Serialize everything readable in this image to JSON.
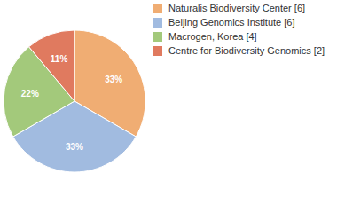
{
  "chart_data": {
    "type": "pie",
    "categories": [
      "Naturalis Biodiversity Center [6]",
      "Beijing Genomics Institute [6]",
      "Macrogen, Korea [4]",
      "Centre for Biodiversity Genomics [2]"
    ],
    "values": [
      33,
      33,
      22,
      11
    ],
    "value_labels": [
      "33%",
      "33%",
      "22%",
      "11%"
    ],
    "colors": [
      "#f0ad73",
      "#a1bbe0",
      "#a3c97b",
      "#e07a5f"
    ],
    "data_labels": true,
    "legend": "top-right"
  }
}
